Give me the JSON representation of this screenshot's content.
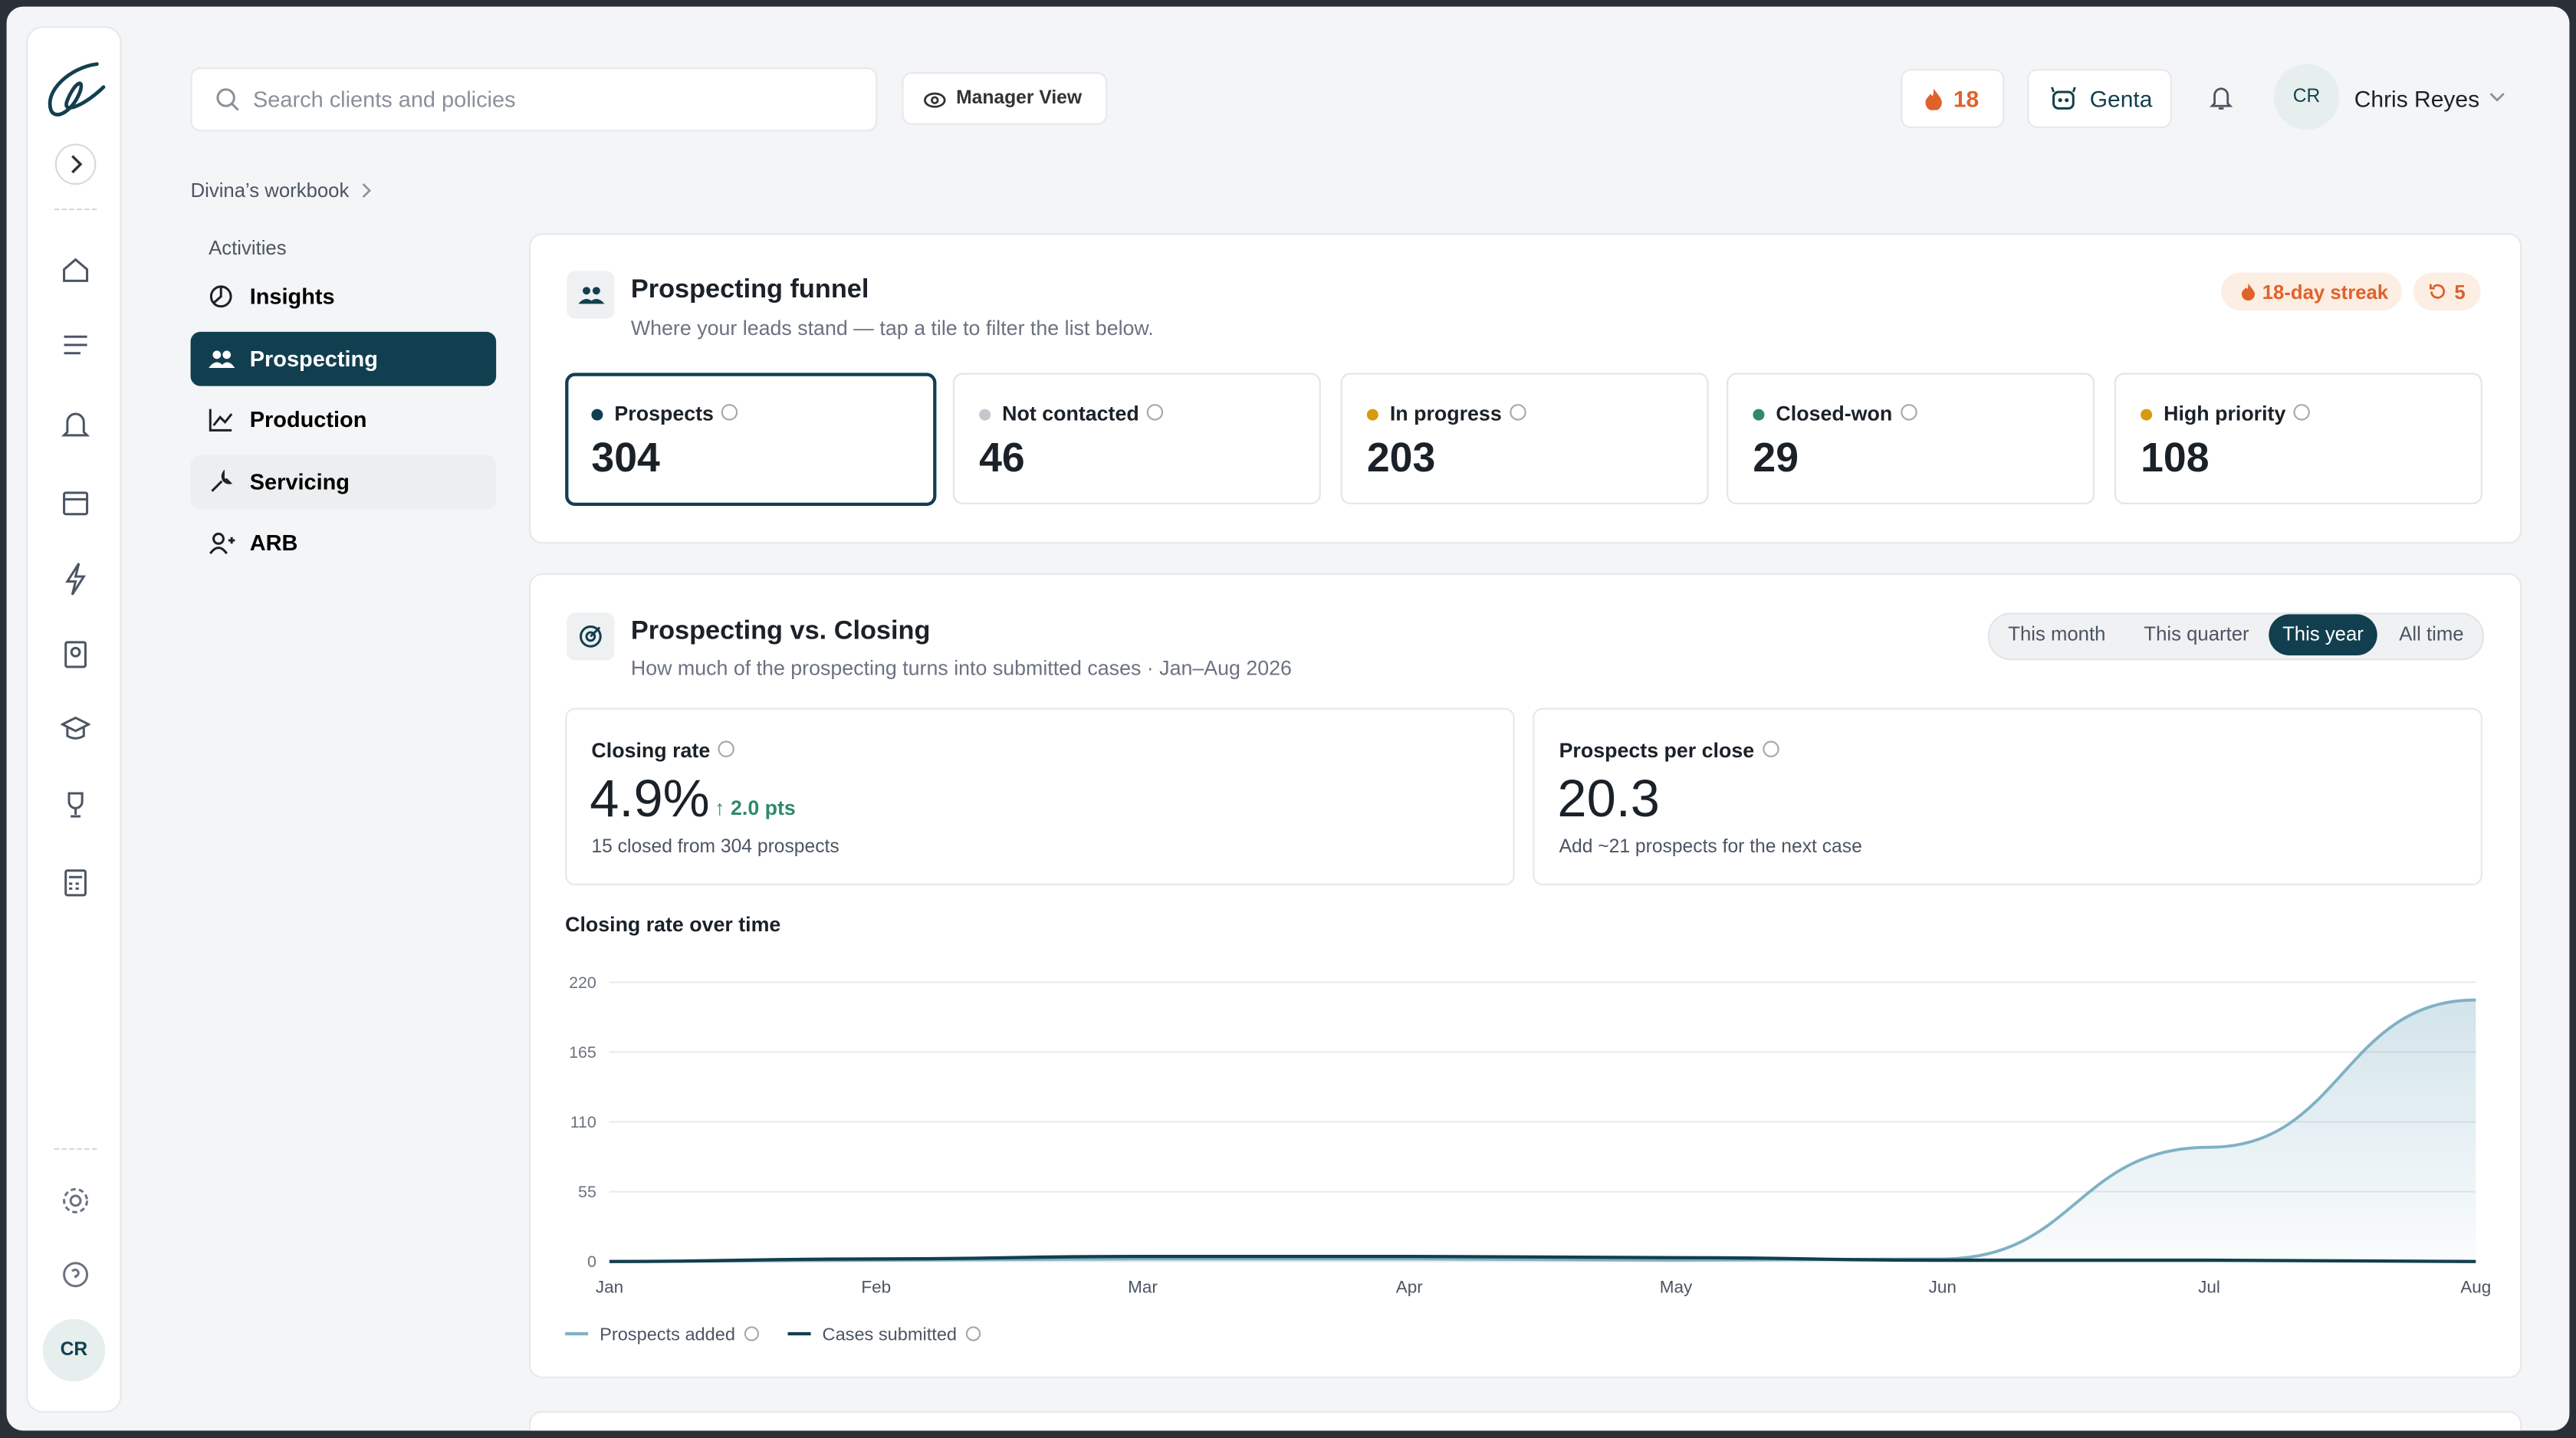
{
  "rail": {
    "avatar": "CR"
  },
  "header": {
    "search_placeholder": "Search clients and policies",
    "manager_view": "Manager View",
    "streak_count": 18,
    "assistant": "Genta",
    "user_initials": "CR",
    "user_name": "Chris Reyes"
  },
  "breadcrumb": "Divina’s workbook",
  "nav": {
    "heading": "Activities",
    "items": [
      "Insights",
      "Prospecting",
      "Production",
      "Servicing",
      "ARB"
    ]
  },
  "funnel": {
    "title": "Prospecting funnel",
    "subtitle": "Where your leads stand — tap a tile to filter the list below.",
    "streak_badge": "18-day streak",
    "refresh_badge": 5,
    "tiles": [
      {
        "label": "Prospects",
        "value": 304
      },
      {
        "label": "Not contacted",
        "value": 46
      },
      {
        "label": "In progress",
        "value": 203
      },
      {
        "label": "Closed-won",
        "value": 29
      },
      {
        "label": "High priority",
        "value": 108
      }
    ]
  },
  "closing": {
    "title": "Prospecting vs. Closing",
    "subtitle": "How much of the prospecting turns into submitted cases · Jan–Aug 2026",
    "ranges": [
      "This month",
      "This quarter",
      "This year",
      "All time"
    ],
    "metrics": [
      {
        "label": "Closing rate",
        "value": "4.9%",
        "delta": "↑ 2.0 pts",
        "note": "15 closed from 304 prospects"
      },
      {
        "label": "Prospects per close",
        "value": "20.3",
        "note": "Add ~21 prospects for the next case"
      }
    ]
  },
  "chart_data": {
    "type": "line",
    "title": "Closing rate over time",
    "categories": [
      "Jan",
      "Feb",
      "Mar",
      "Apr",
      "May",
      "Jun",
      "Jul",
      "Aug"
    ],
    "series": [
      {
        "name": "Prospects added",
        "color": "#7fb1c4",
        "values": [
          0,
          1,
          2,
          2,
          1,
          2,
          90,
          206
        ]
      },
      {
        "name": "Cases submitted",
        "color": "#123f4f",
        "values": [
          0,
          2,
          4,
          4,
          3,
          1,
          1,
          0
        ]
      }
    ],
    "ylim": [
      0,
      220
    ],
    "yticks": [
      0,
      55,
      110,
      165,
      220
    ],
    "grid": true
  }
}
